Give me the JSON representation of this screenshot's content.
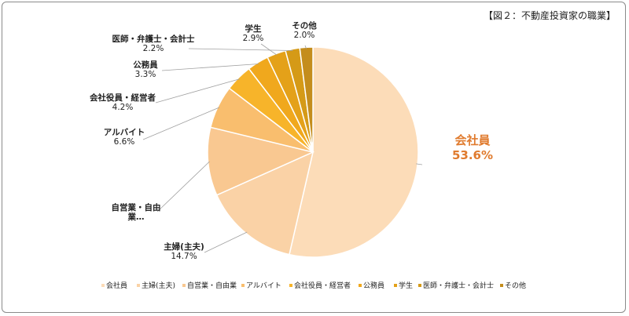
{
  "figure_title": "【図２：不動産投資家の職業】",
  "chart_data": {
    "type": "pie",
    "categories": [
      "会社員",
      "主婦(主夫)",
      "自営業・自由業",
      "アルバイト",
      "会社役員・経営者",
      "公務員",
      "学生",
      "医師・弁護士・会計士",
      "その他"
    ],
    "values": [
      53.6,
      14.7,
      10.5,
      6.6,
      4.2,
      3.3,
      2.9,
      2.2,
      2.0
    ],
    "value_labels": [
      "53.6%",
      "14.7%",
      "",
      "6.6%",
      "4.2%",
      "3.3%",
      "2.9%",
      "2.2%",
      "2.0%"
    ],
    "slice_labels": [
      "会社員",
      "主婦(主夫)",
      "自営業・自由\n業…",
      "アルバイト",
      "会社役員・経営者",
      "公務員",
      "学生",
      "医師・弁護士・会計士",
      "その他"
    ],
    "legend": [
      "会社員",
      "主婦(主夫)",
      "自営業・自由業",
      "アルバイト",
      "会社役員・経営者",
      "公務員",
      "学生",
      "医師・弁護士・会計士",
      "その他"
    ],
    "legend_position": "bottom",
    "colors": [
      "#fcdcb8",
      "#fad2a6",
      "#f9c891",
      "#f9be6e",
      "#f7b42a",
      "#f0a81d",
      "#e4a119",
      "#d59a17",
      "#c48d1c"
    ]
  }
}
